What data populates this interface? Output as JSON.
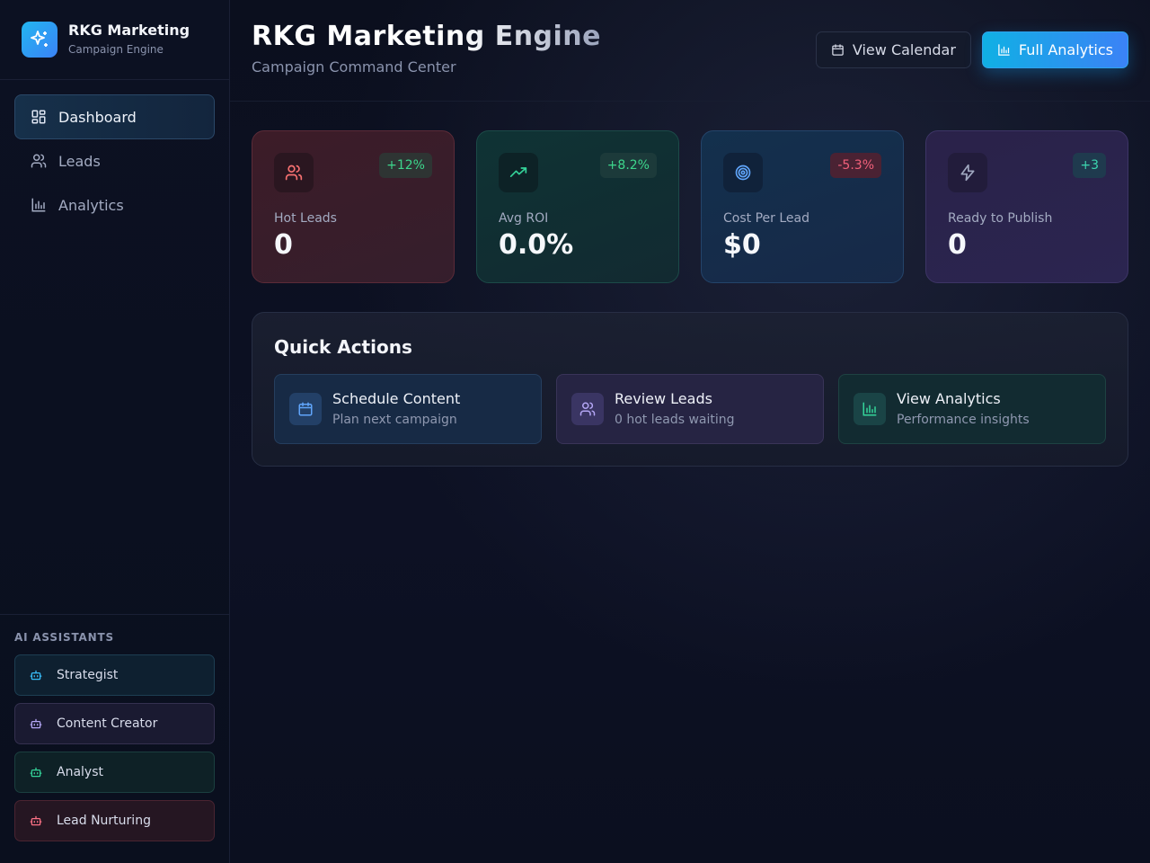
{
  "brand": {
    "name": "RKG Marketing",
    "subtitle": "Campaign Engine"
  },
  "nav": {
    "items": [
      {
        "label": "Dashboard",
        "icon": "dashboard-icon",
        "active": true
      },
      {
        "label": "Leads",
        "icon": "users-icon",
        "active": false
      },
      {
        "label": "Analytics",
        "icon": "bar-chart-icon",
        "active": false
      }
    ]
  },
  "assistants": {
    "title": "AI ASSISTANTS",
    "items": [
      {
        "label": "Strategist",
        "icon": "bot-icon",
        "color": "#38bdf8"
      },
      {
        "label": "Content Creator",
        "icon": "bot-icon",
        "color": "#a78bfa"
      },
      {
        "label": "Analyst",
        "icon": "bot-icon",
        "color": "#34d399"
      },
      {
        "label": "Lead Nurturing",
        "icon": "bot-icon",
        "color": "#fb7185"
      }
    ]
  },
  "header": {
    "title": "RKG Marketing Engine",
    "subtitle": "Campaign Command Center",
    "view_calendar": "View Calendar",
    "full_analytics": "Full Analytics"
  },
  "stats": [
    {
      "label": "Hot Leads",
      "value": "0",
      "badge": "+12%",
      "icon": "users-icon",
      "color": "#f87171"
    },
    {
      "label": "Avg ROI",
      "value": "0.0%",
      "badge": "+8.2%",
      "icon": "trending-up-icon",
      "color": "#34d399"
    },
    {
      "label": "Cost Per Lead",
      "value": "$0",
      "badge": "-5.3%",
      "icon": "target-icon",
      "color": "#60a5fa"
    },
    {
      "label": "Ready to Publish",
      "value": "0",
      "badge": "+3",
      "icon": "zap-icon",
      "color": "#a0a8c0"
    }
  ],
  "quick_actions": {
    "title": "Quick Actions",
    "items": [
      {
        "title": "Schedule Content",
        "subtitle": "Plan next campaign",
        "icon": "calendar-icon"
      },
      {
        "title": "Review Leads",
        "subtitle": "0 hot leads waiting",
        "icon": "users-icon"
      },
      {
        "title": "View Analytics",
        "subtitle": "Performance insights",
        "icon": "bar-chart-icon"
      }
    ]
  }
}
